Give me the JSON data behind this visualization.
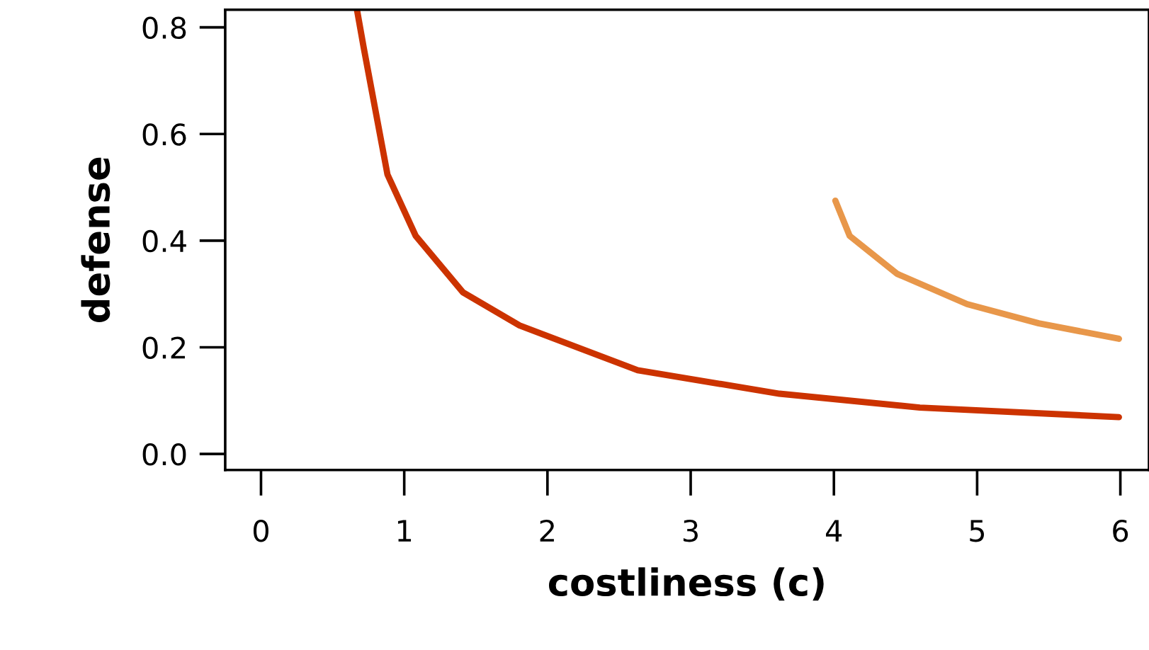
{
  "chart_data": {
    "type": "line",
    "xlabel": "costliness (c)",
    "ylabel": "defense",
    "series": [
      {
        "color": "#cc3300",
        "x": [
          0.67,
          0.717,
          0.883,
          1.08,
          1.41,
          1.805,
          2.63,
          3.62,
          4.6,
          5.99
        ],
        "values": [
          0.833,
          0.762,
          0.524,
          0.409,
          0.303,
          0.241,
          0.157,
          0.113,
          0.087,
          0.069
        ]
      },
      {
        "color": "#e8974a",
        "x": [
          4.01,
          4.11,
          4.44,
          4.93,
          5.43,
          5.99
        ],
        "values": [
          0.475,
          0.409,
          0.338,
          0.281,
          0.245,
          0.216
        ]
      }
    ],
    "xlim": [
      -0.25,
      6.2
    ],
    "ylim": [
      -0.03,
      0.833
    ],
    "xticks": [
      0,
      1,
      2,
      3,
      4,
      5,
      6
    ],
    "yticks": [
      {
        "value": 0,
        "label": "0.0"
      },
      0.2,
      0.4,
      0.6,
      0.8
    ],
    "grid": false,
    "legend": false,
    "marker": "none",
    "line_style": "solid"
  }
}
